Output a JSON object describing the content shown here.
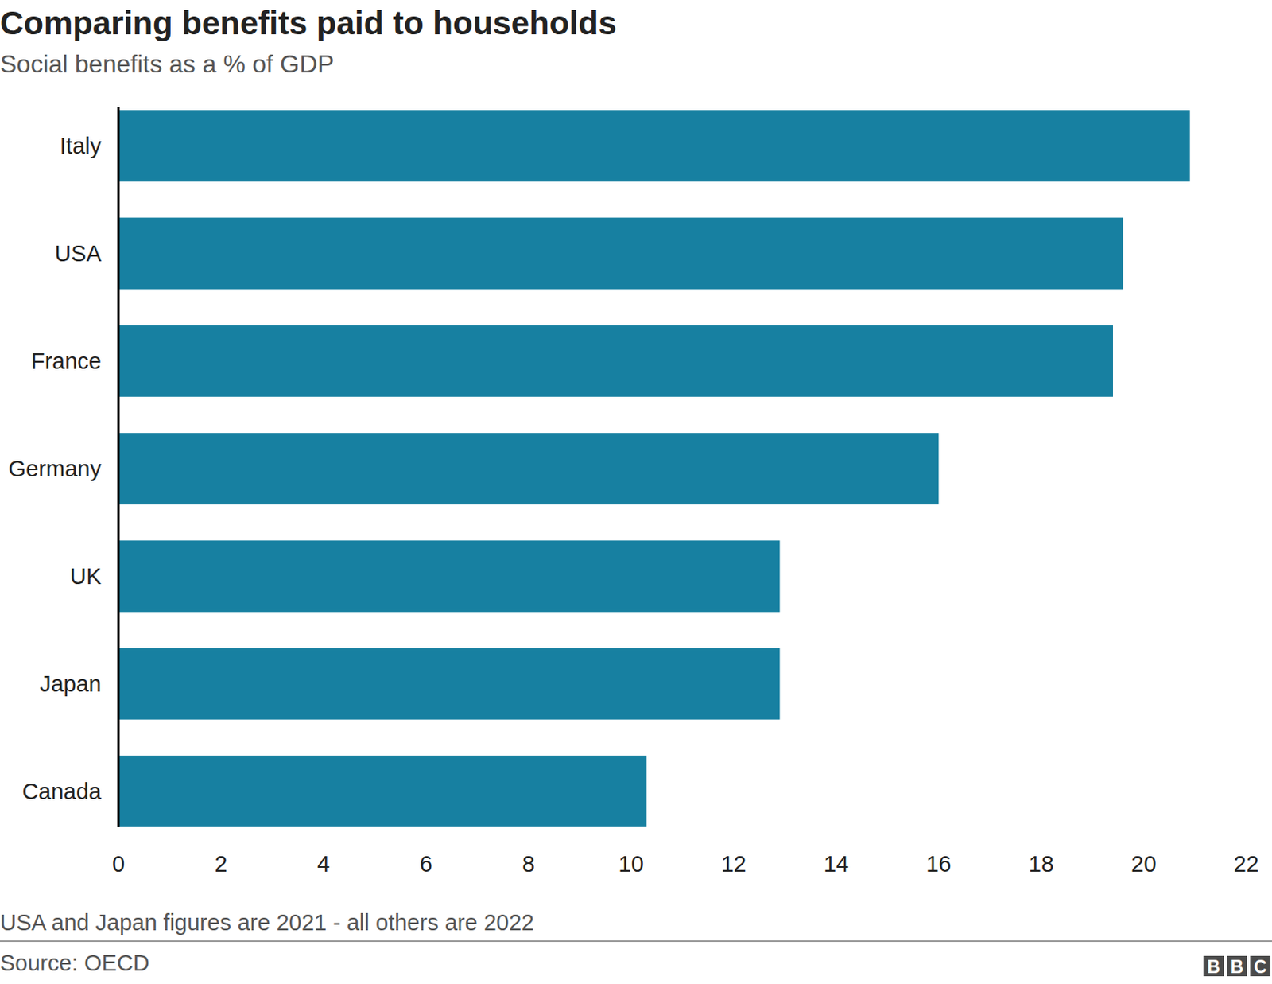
{
  "chart_data": {
    "type": "bar",
    "orientation": "horizontal",
    "title": "Comparing benefits paid to households",
    "subtitle": "Social benefits as a % of GDP",
    "categories": [
      "Italy",
      "USA",
      "France",
      "Germany",
      "UK",
      "Japan",
      "Canada"
    ],
    "values": [
      20.9,
      19.6,
      19.4,
      16.0,
      12.9,
      12.9,
      10.3
    ],
    "color": "#1780a1",
    "xlim": [
      0,
      22
    ],
    "xticks": [
      0,
      2,
      4,
      6,
      8,
      10,
      12,
      14,
      16,
      18,
      20,
      22
    ],
    "grid": false,
    "footnote": "USA and Japan figures are 2021 - all others are 2022",
    "source": "Source: OECD",
    "logo": "BBC"
  }
}
